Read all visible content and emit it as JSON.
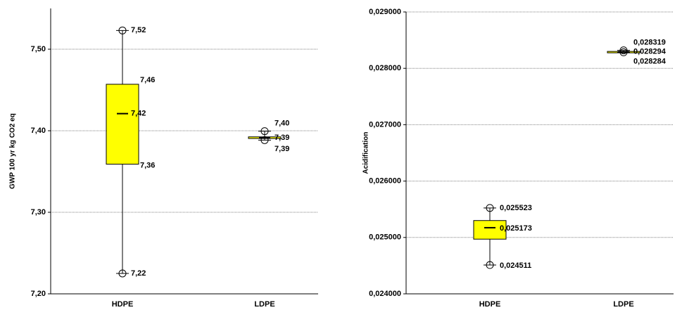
{
  "chart_data": [
    {
      "type": "boxplot",
      "ylabel": "GWP 100 yr kg CO2 eq",
      "ylim": [
        7.2,
        7.55
      ],
      "yticks": [
        "7,20",
        "7,30",
        "7,40",
        "7,50"
      ],
      "ytick_values": [
        7.2,
        7.3,
        7.4,
        7.5
      ],
      "categories": [
        "HDPE",
        "LDPE"
      ],
      "grid": true,
      "color": "#ffff00",
      "boxes": [
        {
          "category": "HDPE",
          "max": 7.523,
          "q3": 7.457,
          "median": 7.421,
          "q1": 7.359,
          "min": 7.225,
          "labels": {
            "max": "7,52",
            "q3": "7,46",
            "median": "7,42",
            "q1": "7,36",
            "min": "7,22"
          }
        },
        {
          "category": "LDPE",
          "max": 7.3995,
          "q3": 7.3925,
          "median": 7.3915,
          "q1": 7.3905,
          "min": 7.3885,
          "labels": {
            "max": "7,40",
            "median": "7,39",
            "min": "7,39"
          }
        }
      ]
    },
    {
      "type": "boxplot",
      "ylabel": "Acidification",
      "ylim": [
        0.024,
        0.029
      ],
      "yticks": [
        "0,024000",
        "0,025000",
        "0,026000",
        "0,027000",
        "0,028000",
        "0,029000"
      ],
      "ytick_values": [
        0.024,
        0.025,
        0.026,
        0.027,
        0.028,
        0.029
      ],
      "categories": [
        "HDPE",
        "LDPE"
      ],
      "grid": true,
      "color": "#ffff00",
      "boxes": [
        {
          "category": "HDPE",
          "max": 0.025523,
          "q3": 0.0253,
          "median": 0.025173,
          "q1": 0.02497,
          "min": 0.024511,
          "labels": {
            "max": "0,025523",
            "median": "0,025173",
            "min": "0,024511"
          }
        },
        {
          "category": "LDPE",
          "max": 0.028319,
          "q3": 0.0283,
          "median": 0.028294,
          "q1": 0.02829,
          "min": 0.028284,
          "labels": {
            "max": "0,028319",
            "median": "0,028294",
            "min": "0,028284"
          }
        }
      ]
    }
  ]
}
